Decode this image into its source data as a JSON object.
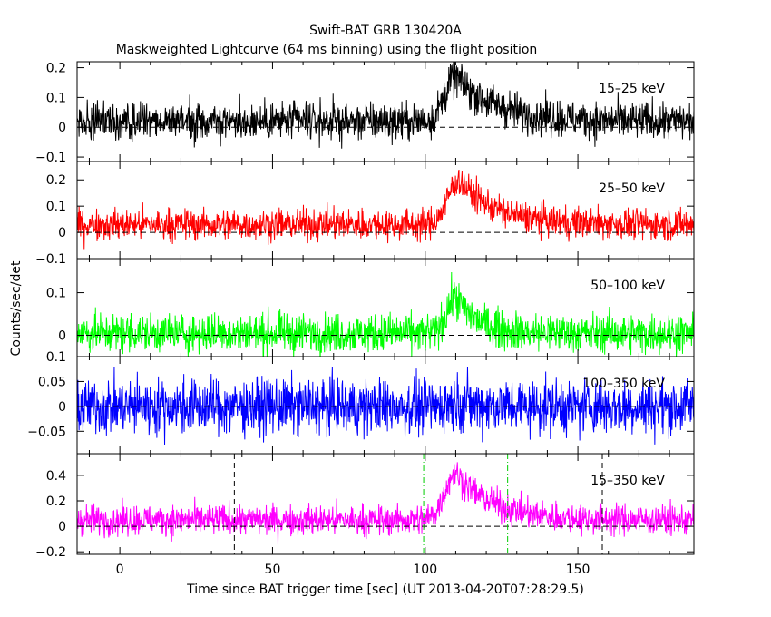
{
  "chart_data": {
    "type": "line",
    "title": "Swift-BAT GRB 130420A",
    "subtitle": "Maskweighted Lightcurve (64 ms binning) using the flight position",
    "xlabel": "Time since BAT trigger time [sec] (UT 2013-04-20T07:28:29.5)",
    "ylabel": "Counts/sec/det",
    "xlim": [
      -14,
      188
    ],
    "xticks": [
      0,
      50,
      100,
      150
    ],
    "xtick_labels": [
      "0",
      "50",
      "100",
      "150"
    ],
    "dashed_vlines_black": [
      37.5,
      158
    ],
    "dashed_vlines_green": [
      99.5,
      127
    ],
    "grid": false,
    "panels": [
      {
        "name": "15-25 keV",
        "label": "15–25 keV",
        "color": "#000000",
        "ylim": [
          -0.115,
          0.22
        ],
        "yticks": [
          -0.1,
          0,
          0.1,
          0.2
        ],
        "ytick_labels": [
          "−0.1",
          "0",
          "0.1",
          "0.2"
        ],
        "baseline": 0.02,
        "noise": 0.032,
        "pulse": {
          "peak": 0.15,
          "t0": 110,
          "rise": 5,
          "decay": 13
        }
      },
      {
        "name": "25-50 keV",
        "label": "25–50 keV",
        "color": "#ff0000",
        "ylim": [
          -0.1,
          0.27
        ],
        "yticks": [
          -0.1,
          0,
          0.1,
          0.2
        ],
        "ytick_labels": [
          "−0.1",
          "0",
          "0.1",
          "0.2"
        ],
        "baseline": 0.03,
        "noise": 0.03,
        "pulse": {
          "peak": 0.17,
          "t0": 111,
          "rise": 5,
          "decay": 12
        }
      },
      {
        "name": "50-100 keV",
        "label": "50–100 keV",
        "color": "#00ff00",
        "ylim": [
          -0.05,
          0.18
        ],
        "yticks": [
          0,
          0.1
        ],
        "ytick_labels": [
          "0",
          "0.1"
        ],
        "baseline": 0.005,
        "noise": 0.023,
        "pulse": {
          "peak": 0.085,
          "t0": 110,
          "rise": 4,
          "decay": 7
        }
      },
      {
        "name": "100-350 keV",
        "label": "100–350 keV",
        "color": "#0000ff",
        "ylim": [
          -0.095,
          0.1
        ],
        "yticks": [
          -0.05,
          0,
          0.05,
          0.1
        ],
        "ytick_labels": [
          "−0.05",
          "0",
          "0.05",
          "0.1"
        ],
        "baseline": 0.0,
        "noise": 0.028,
        "pulse": {
          "peak": 0.01,
          "t0": 110,
          "rise": 4,
          "decay": 8
        }
      },
      {
        "name": "15-350 keV",
        "label": "15–350 keV",
        "color": "#ff00ff",
        "ylim": [
          -0.22,
          0.57
        ],
        "yticks": [
          -0.2,
          0,
          0.2,
          0.4
        ],
        "ytick_labels": [
          "−0.2",
          "0",
          "0.2",
          "0.4"
        ],
        "baseline": 0.05,
        "noise": 0.06,
        "pulse": {
          "peak": 0.37,
          "t0": 110,
          "rise": 5,
          "decay": 12
        }
      }
    ]
  }
}
